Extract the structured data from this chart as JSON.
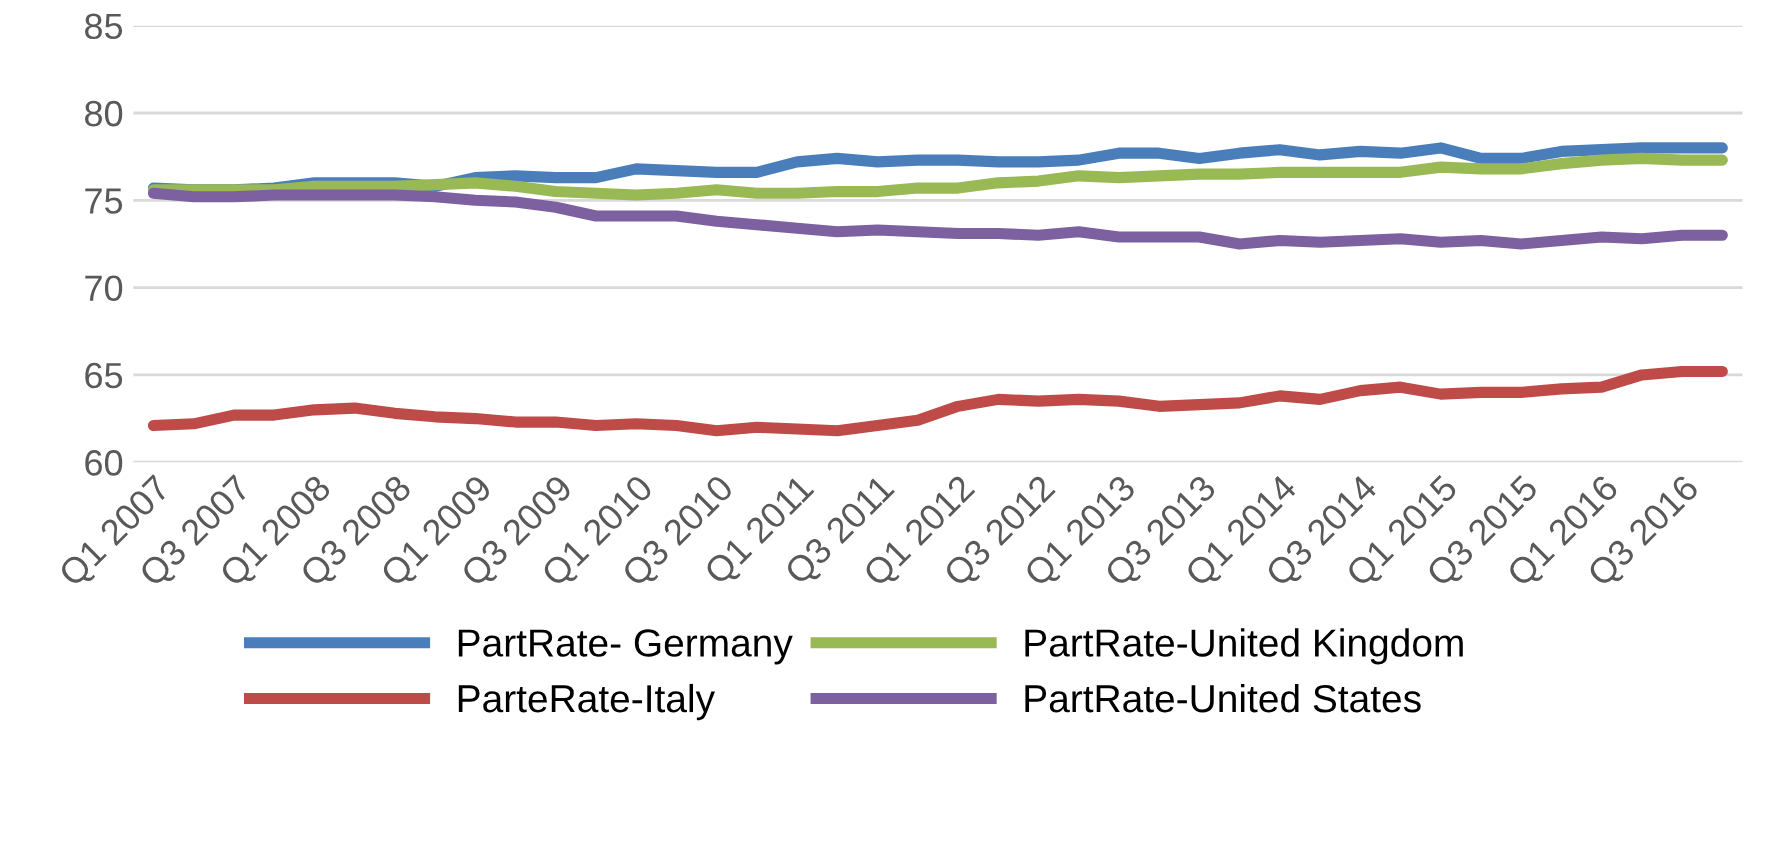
{
  "chart_data": {
    "type": "line",
    "categories": [
      "Q1 2007",
      null,
      "Q3 2007",
      null,
      "Q1 2008",
      null,
      "Q3 2008",
      null,
      "Q1 2009",
      null,
      "Q3 2009",
      null,
      "Q1 2010",
      null,
      "Q3 2010",
      null,
      "Q1 2011",
      null,
      "Q3 2011",
      null,
      "Q1 2012",
      null,
      "Q3 2012",
      null,
      "Q1 2013",
      null,
      "Q3 2013",
      null,
      "Q1 2014",
      null,
      "Q3 2014",
      null,
      "Q1 2015",
      null,
      "Q3 2015",
      null,
      "Q1 2016",
      null,
      "Q3 2016",
      null
    ],
    "series": [
      {
        "name": "PartRate- Germany",
        "color": "#4a7ebb",
        "values": [
          75.7,
          75.6,
          75.6,
          75.7,
          76.0,
          76.0,
          76.0,
          75.8,
          76.3,
          76.4,
          76.3,
          76.3,
          76.8,
          76.7,
          76.6,
          76.6,
          77.2,
          77.4,
          77.2,
          77.3,
          77.3,
          77.2,
          77.2,
          77.3,
          77.7,
          77.7,
          77.4,
          77.7,
          77.9,
          77.6,
          77.8,
          77.7,
          78.0,
          77.4,
          77.4,
          77.8,
          77.9,
          78.0,
          78.0,
          78.0
        ]
      },
      {
        "name": "ParteRate-Italy",
        "color": "#be4b48",
        "values": [
          62.1,
          62.2,
          62.7,
          62.7,
          63.0,
          63.1,
          62.8,
          62.6,
          62.5,
          62.3,
          62.3,
          62.1,
          62.2,
          62.1,
          61.8,
          62.0,
          61.9,
          61.8,
          62.1,
          62.4,
          63.2,
          63.6,
          63.5,
          63.6,
          63.5,
          63.2,
          63.3,
          63.4,
          63.8,
          63.6,
          64.1,
          64.3,
          63.9,
          64.0,
          64.0,
          64.2,
          64.3,
          65.0,
          65.2,
          65.2
        ]
      },
      {
        "name": "PartRate-United Kingdom",
        "color": "#98b954",
        "values": [
          75.6,
          75.6,
          75.6,
          75.6,
          75.8,
          75.8,
          75.8,
          75.9,
          76.0,
          75.8,
          75.5,
          75.4,
          75.3,
          75.4,
          75.6,
          75.4,
          75.4,
          75.5,
          75.5,
          75.7,
          75.7,
          76.0,
          76.1,
          76.4,
          76.3,
          76.4,
          76.5,
          76.5,
          76.6,
          76.6,
          76.6,
          76.6,
          76.9,
          76.8,
          76.8,
          77.1,
          77.3,
          77.4,
          77.3,
          77.3
        ]
      },
      {
        "name": "PartRate-United States",
        "color": "#7d60a0",
        "values": [
          75.4,
          75.2,
          75.2,
          75.3,
          75.3,
          75.3,
          75.3,
          75.2,
          75.0,
          74.9,
          74.6,
          74.1,
          74.1,
          74.1,
          73.8,
          73.6,
          73.4,
          73.2,
          73.3,
          73.2,
          73.1,
          73.1,
          73.0,
          73.2,
          72.9,
          72.9,
          72.9,
          72.5,
          72.7,
          72.6,
          72.7,
          72.8,
          72.6,
          72.7,
          72.5,
          72.7,
          72.9,
          72.8,
          73.0,
          73.0
        ]
      }
    ],
    "ylim": [
      60,
      85
    ],
    "yticks": [
      60,
      65,
      70,
      75,
      80,
      85
    ],
    "grid": "y",
    "legend": "bottom",
    "marker": "none",
    "line_style": "solid"
  }
}
